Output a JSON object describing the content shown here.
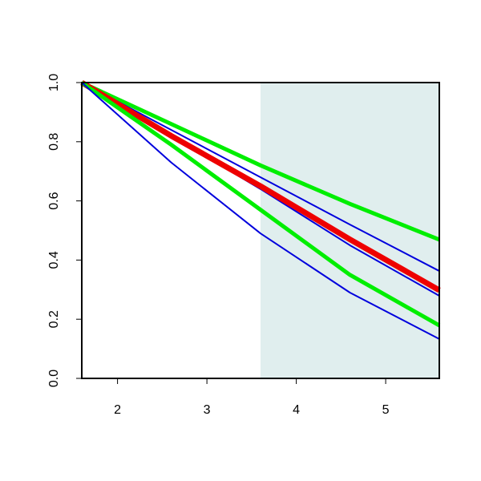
{
  "chart_data": {
    "type": "line",
    "x": [
      1.6,
      2.6,
      3.6,
      4.6,
      5.6
    ],
    "series": [
      {
        "color": "#00ee00",
        "width": 5,
        "values": [
          1.0,
          0.86,
          0.72,
          0.59,
          0.469
        ]
      },
      {
        "color": "#0000dd",
        "width": 2,
        "values": [
          1.0,
          0.84,
          0.68,
          0.52,
          0.363
        ]
      },
      {
        "color": "#0000dd",
        "width": 2,
        "values": [
          1.0,
          0.82,
          0.64,
          0.45,
          0.279
        ]
      },
      {
        "color": "#ee0000",
        "width": 7,
        "values": [
          1.0,
          0.82,
          0.65,
          0.47,
          0.298
        ]
      },
      {
        "color": "#00ee00",
        "width": 5,
        "values": [
          1.0,
          0.79,
          0.57,
          0.35,
          0.179
        ]
      },
      {
        "color": "#0000dd",
        "width": 2,
        "values": [
          1.0,
          0.73,
          0.49,
          0.29,
          0.133
        ]
      }
    ],
    "shade": {
      "xmin": 3.6,
      "xmax": 5.6,
      "color": "#e0eeee"
    },
    "xlim": [
      1.6,
      5.6
    ],
    "ylim": [
      0,
      1
    ],
    "xticks": [
      2,
      3,
      4,
      5
    ],
    "yticks": [
      {
        "value": 0,
        "label": "0.0"
      },
      0.2,
      0.4,
      0.6,
      0.8,
      {
        "value": 1,
        "label": "1.0"
      }
    ]
  }
}
